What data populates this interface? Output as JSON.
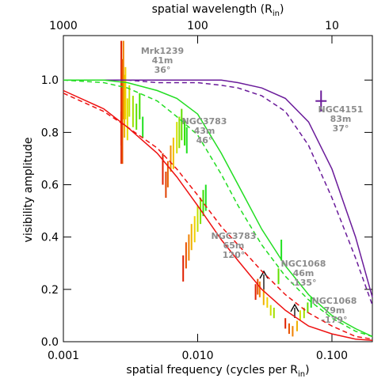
{
  "chart_data": {
    "type": "line",
    "xlabel": "spatial frequency (cycles per R",
    "xlabel_sub": "in",
    "xlabel_end": ")",
    "x2label": "spatial wavelength (R",
    "x2label_sub": "in",
    "x2label_end": ")",
    "ylabel": "visibility amplitude",
    "log_x": true,
    "xlim": [
      0.001,
      0.2
    ],
    "xticks": [
      0.001,
      {
        "value": 0.01,
        "label": "0.010"
      },
      {
        "value": 0.1,
        "label": "0.100"
      }
    ],
    "x2lim": [
      1000,
      5
    ],
    "x2ticks": [
      1000,
      100,
      10
    ],
    "ylim": [
      0,
      1.17
    ],
    "yticks": [
      {
        "value": 0,
        "label": "0.0"
      },
      {
        "value": 0.2,
        "label": "0.2"
      },
      {
        "value": 0.4,
        "label": "0.4"
      },
      {
        "value": 0.6,
        "label": "0.6"
      },
      {
        "value": 0.8,
        "label": "0.8"
      },
      {
        "value": 1,
        "label": "1.0"
      }
    ],
    "x": [
      0.001,
      0.002,
      0.003,
      0.005,
      0.007,
      0.01,
      0.015,
      0.02,
      0.03,
      0.045,
      0.067,
      0.1,
      0.15,
      0.2
    ],
    "series": [
      {
        "color": "#6a1b9a",
        "dashed": false,
        "values": [
          1.0,
          1.0,
          1.0,
          1.0,
          1.0,
          1.0,
          1.0,
          0.99,
          0.97,
          0.93,
          0.84,
          0.66,
          0.4,
          0.17
        ]
      },
      {
        "color": "#6a1b9a",
        "dashed": true,
        "values": [
          1.0,
          1.0,
          1.0,
          0.99,
          0.99,
          0.99,
          0.98,
          0.97,
          0.94,
          0.88,
          0.75,
          0.55,
          0.32,
          0.14
        ]
      },
      {
        "color": "#22dd22",
        "dashed": false,
        "values": [
          1.0,
          1.0,
          0.99,
          0.96,
          0.93,
          0.87,
          0.72,
          0.6,
          0.43,
          0.29,
          0.18,
          0.1,
          0.05,
          0.02
        ]
      },
      {
        "color": "#22dd22",
        "dashed": true,
        "values": [
          1.0,
          0.99,
          0.97,
          0.92,
          0.86,
          0.79,
          0.64,
          0.52,
          0.37,
          0.25,
          0.16,
          0.09,
          0.04,
          0.02
        ]
      },
      {
        "color": "#ee1111",
        "dashed": false,
        "values": [
          0.96,
          0.89,
          0.82,
          0.72,
          0.63,
          0.52,
          0.39,
          0.31,
          0.2,
          0.12,
          0.06,
          0.03,
          0.01,
          0.005
        ]
      },
      {
        "color": "#ee1111",
        "dashed": true,
        "values": [
          0.95,
          0.88,
          0.82,
          0.74,
          0.66,
          0.56,
          0.44,
          0.37,
          0.27,
          0.18,
          0.11,
          0.06,
          0.02,
          0.01
        ]
      }
    ],
    "error_bars": {
      "x": [
        0.0027,
        0.0027,
        0.00275,
        0.0028,
        0.00285,
        0.0029,
        0.003,
        0.0031,
        0.0033,
        0.0035,
        0.0037,
        0.0039,
        0.0055,
        0.0058,
        0.006,
        0.0063,
        0.0066,
        0.007,
        0.0073,
        0.0076,
        0.008,
        0.0083,
        0.0078,
        0.0082,
        0.0086,
        0.009,
        0.0095,
        0.01,
        0.0105,
        0.011,
        0.0115,
        0.027,
        0.028,
        0.029,
        0.031,
        0.033,
        0.035,
        0.037,
        0.04,
        0.042,
        0.045,
        0.048,
        0.051,
        0.055,
        0.058,
        0.062,
        0.066,
        0.07,
        0.083
      ],
      "values": [
        0.95,
        0.78,
        0.88,
        1.0,
        0.9,
        0.95,
        0.85,
        0.92,
        0.88,
        0.86,
        0.9,
        0.82,
        0.66,
        0.6,
        0.64,
        0.7,
        0.72,
        0.78,
        0.8,
        0.83,
        0.8,
        0.77,
        0.28,
        0.33,
        0.36,
        0.4,
        0.43,
        0.47,
        0.5,
        0.53,
        0.55,
        0.19,
        0.21,
        0.2,
        0.17,
        0.15,
        0.12,
        0.11,
        0.25,
        0.35,
        0.07,
        0.05,
        0.04,
        0.06,
        0.1,
        0.11,
        0.13,
        0.15,
        0.92
      ],
      "errors": [
        0.2,
        0.1,
        0.2,
        0.15,
        0.12,
        0.1,
        0.08,
        0.06,
        0.06,
        0.05,
        0.05,
        0.04,
        0.06,
        0.05,
        0.05,
        0.05,
        0.06,
        0.06,
        0.06,
        0.06,
        0.05,
        0.05,
        0.05,
        0.05,
        0.05,
        0.05,
        0.05,
        0.05,
        0.05,
        0.05,
        0.05,
        0.03,
        0.03,
        0.03,
        0.03,
        0.02,
        0.02,
        0.02,
        0.03,
        0.04,
        0.02,
        0.02,
        0.02,
        0.02,
        0.02,
        0.02,
        0.02,
        0.02,
        0.04
      ],
      "colors": [
        "#e02000",
        "#e02000",
        "#e85000",
        "#f08000",
        "#f0b000",
        "#f0d000",
        "#e0e000",
        "#c0e000",
        "#a0e000",
        "#60e000",
        "#40e000",
        "#20e020",
        "#e02000",
        "#e04000",
        "#e86000",
        "#f09000",
        "#f0c000",
        "#d0e000",
        "#90e000",
        "#60e000",
        "#30e000",
        "#20e020",
        "#e02000",
        "#e85000",
        "#f08000",
        "#f0b000",
        "#f0d000",
        "#c0e000",
        "#80e000",
        "#40e000",
        "#20e020",
        "#e02000",
        "#e85000",
        "#f08000",
        "#f0b000",
        "#f0d000",
        "#d0e000",
        "#a0e000",
        "#60e000",
        "#20e020",
        "#e02000",
        "#e85000",
        "#f08000",
        "#f0b000",
        "#d0e000",
        "#a0e000",
        "#60e000",
        "#20e020",
        "#6a1b9a"
      ]
    },
    "annotations": [
      [
        "Mrk1239",
        "41m",
        "36°"
      ],
      [
        "NGC4151",
        "83m",
        "37°"
      ],
      [
        "NGC3783",
        "43m",
        "46°"
      ],
      [
        "NGC3783",
        "65m",
        "120°"
      ],
      [
        "NGC1068",
        "46m",
        "-135°"
      ],
      [
        "NGC1068",
        "79m",
        "-179°"
      ]
    ]
  }
}
